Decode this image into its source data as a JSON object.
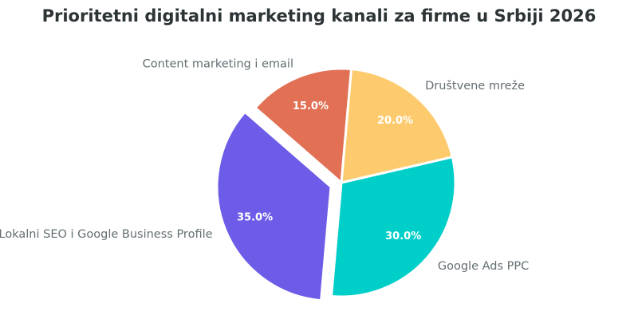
{
  "chart_data": {
    "type": "pie",
    "title": "Prioritetni digitalni marketing kanali za firme u Srbiji 2026",
    "categories": [
      "Društvene mreže",
      "Google Ads PPC",
      "Lokalni SEO i Google Business Profile",
      "Content marketing i email"
    ],
    "values": [
      20.0,
      30.0,
      35.0,
      15.0
    ],
    "value_labels": [
      "20.0%",
      "30.0%",
      "35.0%",
      "15.0%"
    ],
    "colors": [
      "#fdcb6e",
      "#00cec9",
      "#6c5ce7",
      "#e17055"
    ],
    "exploded": [
      false,
      false,
      true,
      false
    ],
    "start_angle_deg": 85,
    "direction": "clockwise",
    "legend": "none"
  }
}
